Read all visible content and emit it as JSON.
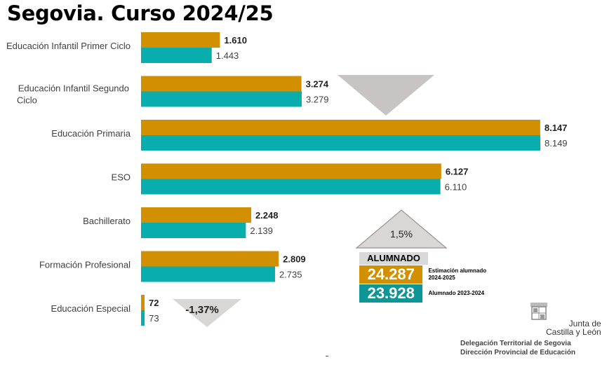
{
  "title": "Segovia. Curso 2024/25",
  "chart_data": {
    "type": "bar",
    "orientation": "horizontal",
    "title": "Segovia. Curso 2024/25",
    "categories": [
      [
        "Educación Infantil Primer Ciclo"
      ],
      [
        "Educación Infantil Segundo",
        "Ciclo"
      ],
      [
        "Educación Primaria"
      ],
      [
        "ESO"
      ],
      [
        "Bachillerato"
      ],
      [
        "Formación Profesional"
      ],
      [
        "Educación Especial"
      ]
    ],
    "series": [
      {
        "name": "Estimación alumnado 2024-2025",
        "color": "#d28f00",
        "values": [
          1610,
          3274,
          8147,
          6127,
          2248,
          2809,
          72
        ],
        "labels": [
          "1.610",
          "3.274",
          "8.147",
          "6.127",
          "2.248",
          "2.809",
          "72"
        ]
      },
      {
        "name": "Alumnado 2023-2024",
        "color": "#0aadad",
        "values": [
          1443,
          3279,
          8149,
          6110,
          2139,
          2735,
          73
        ],
        "labels": [
          "1.443",
          "3.279",
          "8.149",
          "6.110",
          "2.139",
          "2.735",
          "73"
        ]
      }
    ],
    "xlim": [
      0,
      8149
    ],
    "annotations": [
      {
        "text": "",
        "shape": "down-triangle",
        "color": "#c8c4c4",
        "near": "Educación Infantil Segundo Ciclo"
      },
      {
        "text": "1,5%",
        "shape": "up-triangle",
        "color": "#d9d6d6",
        "near": "Bachillerato"
      },
      {
        "text": "-1,37%",
        "shape": "down-triangle",
        "color": "#d9d6d6",
        "near": "Educación Especial"
      }
    ]
  },
  "summary": {
    "header": "ALUMNADO",
    "rows": [
      {
        "value": "24.287",
        "label": "Estimación alumnado 2024-2025",
        "color": "#d28f00"
      },
      {
        "value": "23.928",
        "label": "Alumnado 2023-2024",
        "color": "#0e9696"
      }
    ]
  },
  "footer": {
    "org_line1": "Junta de",
    "org_line2": "Castilla y León",
    "dept_line1": "Delegación Territorial de Segovia",
    "dept_line2": "Dirección Provincial de Educación"
  }
}
